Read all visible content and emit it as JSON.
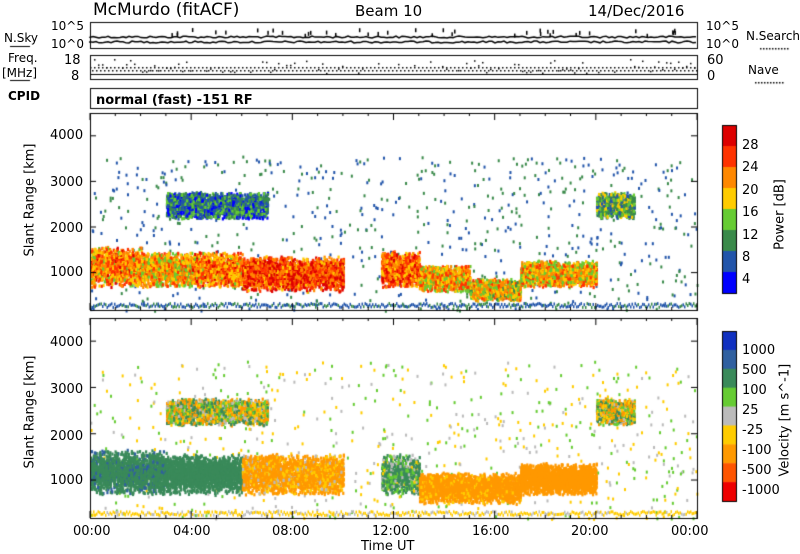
{
  "header": {
    "station": "McMurdo (fitACF)",
    "beam": "Beam 10",
    "date": "14/Dec/2016"
  },
  "side_labels": {
    "nsky": "N.Sky",
    "freq": "Freq.",
    "freq_unit": "[MHz]",
    "cpid": "CPID",
    "nsearch": "N.Search",
    "nave": "Nave"
  },
  "cpid_text": "normal (fast) -151 RF",
  "noise_ticks": {
    "top": "10^5",
    "bottom": "10^0"
  },
  "freq_ticks": [
    "8",
    "18"
  ],
  "nave_ticks": [
    "0",
    "60"
  ],
  "xaxis": {
    "label": "Time UT",
    "ticks": [
      "00:00",
      "04:00",
      "08:00",
      "12:00",
      "16:00",
      "20:00",
      "00:00"
    ]
  },
  "panels": [
    {
      "ylabel": "Slant Range [km]",
      "yticks": [
        "1000",
        "2000",
        "3000",
        "4000"
      ],
      "colorbar_label": "Power [dB]",
      "colorbar_ticks": [
        "4",
        "8",
        "12",
        "16",
        "20",
        "24",
        "28"
      ],
      "colors": [
        "#0000ff",
        "#2255aa",
        "#3a8a4a",
        "#66cc33",
        "#ffcc00",
        "#ff8800",
        "#ff3300",
        "#dd0000"
      ]
    },
    {
      "ylabel": "Slant Range [km]",
      "yticks": [
        "1000",
        "2000",
        "3000",
        "4000"
      ],
      "colorbar_label": "Velocity [m s^-1]",
      "colorbar_ticks": [
        "1000",
        "500",
        "100",
        "25",
        "-25",
        "-100",
        "-500",
        "-1000"
      ],
      "colors": [
        "#1030c0",
        "#3060a0",
        "#3a8a5a",
        "#66cc33",
        "#bbbbbb",
        "#ffcc00",
        "#ff9900",
        "#ff5500",
        "#ee0000"
      ]
    }
  ],
  "chart_data": [
    {
      "type": "heatmap",
      "title": "Power",
      "xlabel": "Time UT",
      "ylabel": "Slant Range [km]",
      "xlim": [
        "00:00",
        "24:00"
      ],
      "ylim": [
        180,
        4500
      ],
      "colorbar": {
        "label": "Power [dB]",
        "range": [
          0,
          30
        ]
      },
      "blobs": [
        {
          "t": [
            0.0,
            2.0
          ],
          "r": [
            700,
            1600
          ],
          "value": 22
        },
        {
          "t": [
            2.0,
            4.0
          ],
          "r": [
            700,
            1500
          ],
          "value": 20
        },
        {
          "t": [
            4.0,
            6.0
          ],
          "r": [
            700,
            1500
          ],
          "value": 22
        },
        {
          "t": [
            6.0,
            10.0
          ],
          "r": [
            600,
            1400
          ],
          "value": 26
        },
        {
          "t": [
            11.5,
            13.0
          ],
          "r": [
            700,
            1500
          ],
          "value": 24
        },
        {
          "t": [
            13.0,
            15.0
          ],
          "r": [
            600,
            1200
          ],
          "value": 20
        },
        {
          "t": [
            15.0,
            17.0
          ],
          "r": [
            400,
            900
          ],
          "value": 18
        },
        {
          "t": [
            17.0,
            20.0
          ],
          "r": [
            700,
            1300
          ],
          "value": 20
        },
        {
          "t": [
            3.0,
            7.0
          ],
          "r": [
            2200,
            2800
          ],
          "value": 8
        },
        {
          "t": [
            20.0,
            21.5
          ],
          "r": [
            2200,
            2800
          ],
          "value": 12
        }
      ]
    },
    {
      "type": "heatmap",
      "title": "Velocity",
      "xlabel": "Time UT",
      "ylabel": "Slant Range [km]",
      "xlim": [
        "00:00",
        "24:00"
      ],
      "ylim": [
        180,
        4500
      ],
      "colorbar": {
        "label": "Velocity [m s^-1]",
        "range": [
          -1000,
          1000
        ]
      },
      "blobs": [
        {
          "t": [
            0.0,
            3.0
          ],
          "r": [
            700,
            1700
          ],
          "value": 350
        },
        {
          "t": [
            3.0,
            6.0
          ],
          "r": [
            700,
            1600
          ],
          "value": 300
        },
        {
          "t": [
            6.0,
            10.0
          ],
          "r": [
            700,
            1600
          ],
          "value": -200
        },
        {
          "t": [
            11.5,
            13.0
          ],
          "r": [
            700,
            1600
          ],
          "value": 150
        },
        {
          "t": [
            13.0,
            17.0
          ],
          "r": [
            500,
            1200
          ],
          "value": -250
        },
        {
          "t": [
            17.0,
            20.0
          ],
          "r": [
            700,
            1400
          ],
          "value": -300
        },
        {
          "t": [
            3.0,
            7.0
          ],
          "r": [
            2200,
            2800
          ],
          "value": 0
        },
        {
          "t": [
            20.0,
            21.5
          ],
          "r": [
            2200,
            2800
          ],
          "value": 0
        }
      ]
    }
  ]
}
